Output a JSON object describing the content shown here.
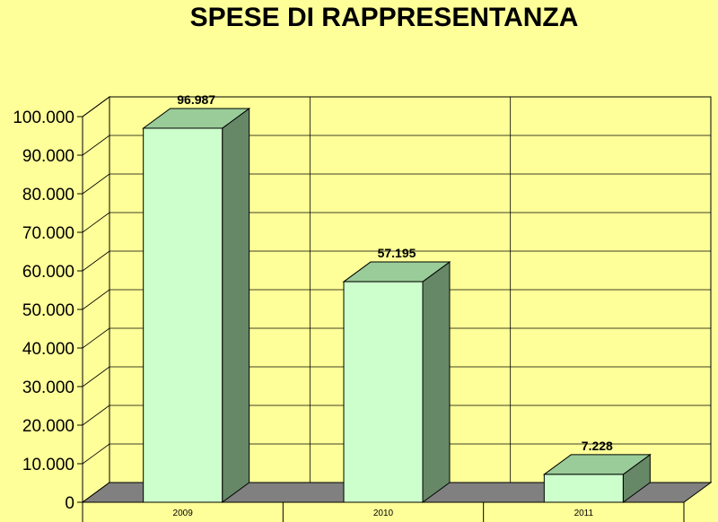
{
  "chart_data": {
    "type": "bar",
    "title": "SPESE DI RAPPRESENTANZA",
    "categories": [
      "2009",
      "2010",
      "2011"
    ],
    "values": [
      96987,
      57195,
      7228
    ],
    "data_labels": [
      "96.987",
      "57.195",
      "7.228"
    ],
    "ylim": [
      0,
      100000
    ],
    "yticks": [
      0,
      10000,
      20000,
      30000,
      40000,
      50000,
      60000,
      70000,
      80000,
      90000,
      100000
    ],
    "ytick_labels": [
      "0",
      "10.000",
      "20.000",
      "30.000",
      "40.000",
      "50.000",
      "60.000",
      "70.000",
      "80.000",
      "90.000",
      "100.000"
    ],
    "grid": true,
    "style": "3d",
    "colors": {
      "background": "#FFFF99",
      "bar_front": "#CCFFCC",
      "bar_top": "#99CC99",
      "bar_side": "#668866",
      "floor": "#808080",
      "grid": "#000000"
    }
  }
}
